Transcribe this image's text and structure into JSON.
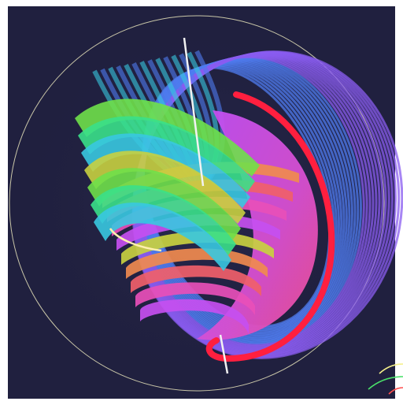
{
  "scene": {
    "subject": "hopf-fibration-render",
    "background": "#20203f",
    "frame_color": "#ffffff",
    "sphere_outline": "#c9c6a8",
    "axis_line": "#f2f2f2",
    "highlight_ring": "#ff1f3f",
    "inner_ring": "#fff0b0",
    "band_colors": [
      "#4f7cf0",
      "#8a5cf0",
      "#c54ff0",
      "#e84fb8",
      "#f0606a",
      "#f08a4f",
      "#c8d040",
      "#6fe04a",
      "#3ae08a",
      "#38c8e0"
    ],
    "corner_arcs": [
      "#f5f08a",
      "#4ae06a",
      "#ff4f4f"
    ]
  }
}
